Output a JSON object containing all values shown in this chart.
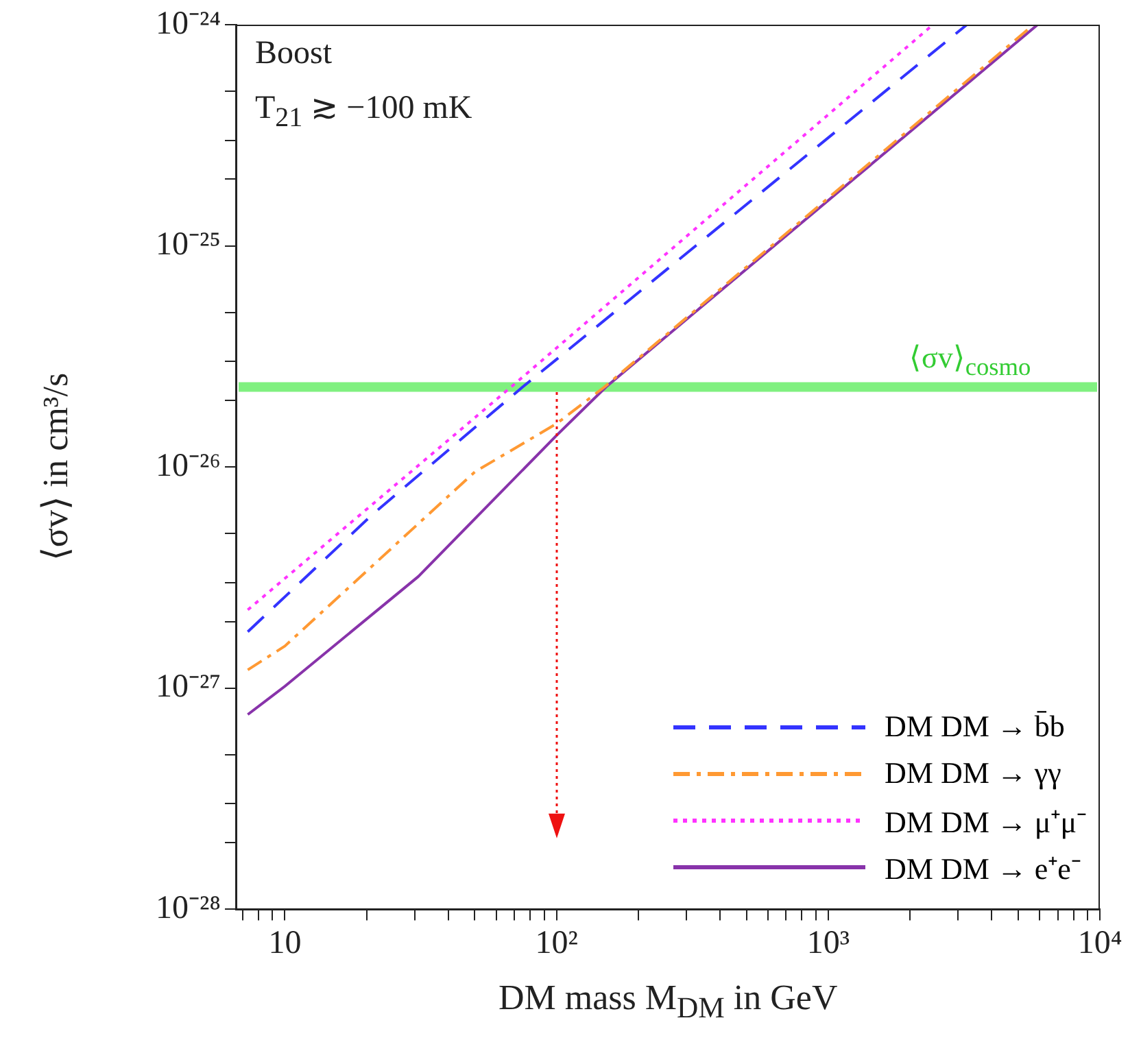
{
  "chart_data": {
    "type": "line",
    "xlabel": "DM mass M$_{DM}$ in GeV",
    "ylabel": "⟨σv⟩ in cm³/s",
    "log": "xy",
    "legend": "bottom right",
    "grid": false,
    "marker": "none",
    "xlim": [
      6.6,
      10000
    ],
    "xticks": [
      {
        "value": 7,
        "label": null
      },
      {
        "value": 8,
        "label": null
      },
      {
        "value": 9,
        "label": null
      },
      {
        "value": 10,
        "label": "10"
      },
      {
        "value": 20,
        "label": null
      },
      {
        "value": 30,
        "label": null
      },
      {
        "value": 40,
        "label": null
      },
      {
        "value": 50,
        "label": null
      },
      {
        "value": 60,
        "label": null
      },
      {
        "value": 70,
        "label": null
      },
      {
        "value": 80,
        "label": null
      },
      {
        "value": 90,
        "label": null
      },
      {
        "value": 100,
        "label": "10²"
      },
      {
        "value": 200,
        "label": null
      },
      {
        "value": 300,
        "label": null
      },
      {
        "value": 400,
        "label": null
      },
      {
        "value": 500,
        "label": null
      },
      {
        "value": 600,
        "label": null
      },
      {
        "value": 700,
        "label": null
      },
      {
        "value": 800,
        "label": null
      },
      {
        "value": 900,
        "label": null
      },
      {
        "value": 1000,
        "label": "10³"
      },
      {
        "value": 2000,
        "label": null
      },
      {
        "value": 3000,
        "label": null
      },
      {
        "value": 4000,
        "label": null
      },
      {
        "value": 5000,
        "label": null
      },
      {
        "value": 6000,
        "label": null
      },
      {
        "value": 7000,
        "label": null
      },
      {
        "value": 8000,
        "label": null
      },
      {
        "value": 9000,
        "label": null
      },
      {
        "value": 10000,
        "label": "10⁴"
      }
    ],
    "ylim": [
      1e-28,
      1e-24
    ],
    "yticks": [
      {
        "value": 1e-28,
        "label": "10⁻²⁸"
      },
      {
        "value": 2e-28,
        "label": null
      },
      {
        "value": 3e-28,
        "label": null
      },
      {
        "value": 5e-28,
        "label": null
      },
      {
        "value": 1e-27,
        "label": "10⁻²⁷"
      },
      {
        "value": 2e-27,
        "label": null
      },
      {
        "value": 3e-27,
        "label": null
      },
      {
        "value": 5e-27,
        "label": null
      },
      {
        "value": 1e-26,
        "label": "10⁻²⁶"
      },
      {
        "value": 2e-26,
        "label": null
      },
      {
        "value": 3e-26,
        "label": null
      },
      {
        "value": 5e-26,
        "label": null
      },
      {
        "value": 1e-25,
        "label": "10⁻²⁵"
      },
      {
        "value": 2e-25,
        "label": null
      },
      {
        "value": 3e-25,
        "label": null
      },
      {
        "value": 5e-25,
        "label": null
      },
      {
        "value": 1e-24,
        "label": "10⁻²⁴"
      }
    ],
    "ref_lines": [
      {
        "axis": "y",
        "value": 2.3e-26,
        "label": "⟨σv⟩$_{cosmo}$",
        "color": "#80f080"
      }
    ],
    "annotations": [
      "Boost",
      "T$_{21}$ ≳ −100 mK"
    ],
    "series": [
      {
        "name": "DM DM → b̄b",
        "color": "#3333ff",
        "line_style": "dashed",
        "x": [
          7.3,
          21,
          75,
          3240
        ],
        "values": [
          1.8e-27,
          6.1e-27,
          2.3e-26,
          1e-24
        ]
      },
      {
        "name": "DM DM → γγ",
        "color": "#ff9933",
        "line_style": "dashdot",
        "x": [
          7.3,
          10,
          50,
          100,
          150,
          5700
        ],
        "values": [
          1.21e-27,
          1.55e-27,
          9.5e-27,
          1.57e-26,
          2.3e-26,
          1e-24
        ]
      },
      {
        "name": "DM DM → μ⁺μ⁻",
        "color": "#ff33ff",
        "line_style": "dotted",
        "x": [
          7.3,
          68,
          2430
        ],
        "values": [
          2.26e-27,
          2.3e-26,
          1e-24
        ]
      },
      {
        "name": "DM DM → e⁺e⁻",
        "color": "#8833aa",
        "line_style": "solid",
        "x": [
          7.3,
          10,
          31,
          100,
          152,
          5900
        ],
        "values": [
          7.6e-28,
          1.02e-27,
          3.2e-27,
          1.39e-26,
          2.3e-26,
          1e-24
        ]
      }
    ]
  }
}
